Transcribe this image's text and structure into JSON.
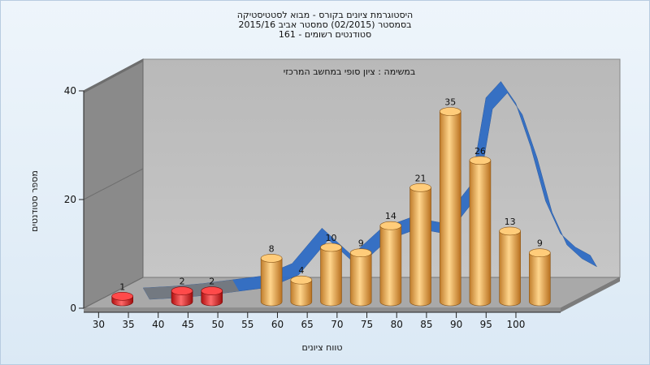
{
  "titles": {
    "line1": "היסטוגרמת ציונים בקורס - מבוא לסטטיסטיקה",
    "line2": "בסמסטר  (02/2015)  סמסטר אביב 2015/16",
    "line3": "סטודנטים רשומים - 161"
  },
  "colors": {
    "bar_fail": "#e02020",
    "bar_pass": "#e9a64a",
    "curve": "#2f6cc4",
    "curve_shadow": "#7a7a7a",
    "wall": "#bcbcbc",
    "left_wall": "#8a8a8a",
    "floor": "#a9a9a9"
  },
  "chart_data": {
    "type": "bar",
    "title": "היסטוגרמת ציונים בקורס - מבוא לסטטיסטיקה",
    "subtitle": "במשימה : ציון סופי במחשב המרכזי",
    "xlabel": "טווח ציונים",
    "ylabel": "מספר סטודנטים",
    "ylim": [
      0,
      40
    ],
    "y_ticks": [
      "0",
      "20",
      "40"
    ],
    "x_ticks": [
      "30",
      "35",
      "40",
      "45",
      "50",
      "55",
      "60",
      "65",
      "70",
      "75",
      "80",
      "85",
      "90",
      "95",
      "100"
    ],
    "bars": [
      {
        "x": 32.5,
        "value": 1,
        "label": "1",
        "status": "fail"
      },
      {
        "x": 42.5,
        "value": 2,
        "label": "2",
        "status": "fail"
      },
      {
        "x": 47.5,
        "value": 2,
        "label": "2",
        "status": "fail"
      },
      {
        "x": 57.5,
        "value": 8,
        "label": "8",
        "status": "pass"
      },
      {
        "x": 62.5,
        "value": 4,
        "label": "4",
        "status": "pass"
      },
      {
        "x": 67.5,
        "value": 10,
        "label": "10",
        "status": "pass"
      },
      {
        "x": 72.5,
        "value": 9,
        "label": "9",
        "status": "pass"
      },
      {
        "x": 77.5,
        "value": 14,
        "label": "14",
        "status": "pass"
      },
      {
        "x": 82.5,
        "value": 21,
        "label": "21",
        "status": "pass"
      },
      {
        "x": 87.5,
        "value": 35,
        "label": "35",
        "status": "pass"
      },
      {
        "x": 92.5,
        "value": 26,
        "label": "26",
        "status": "pass"
      },
      {
        "x": 97.5,
        "value": 13,
        "label": "13",
        "status": "pass"
      },
      {
        "x": 102.5,
        "value": 9,
        "label": "9",
        "status": "pass"
      }
    ],
    "curve": {
      "x": [
        32.5,
        37.5,
        42.5,
        47.5,
        52.5,
        57.5,
        62.5,
        67.5,
        72.5,
        77.5,
        82.5,
        87.5,
        90,
        92.5,
        95,
        97.5,
        100,
        102.5,
        105,
        107.5
      ],
      "y": [
        0,
        0.3,
        0.8,
        1.5,
        2.2,
        4.5,
        11,
        6,
        11,
        13,
        12,
        19,
        35,
        38,
        34,
        26,
        16,
        10,
        7.5,
        6
      ]
    },
    "grid": false,
    "legend": "none"
  }
}
